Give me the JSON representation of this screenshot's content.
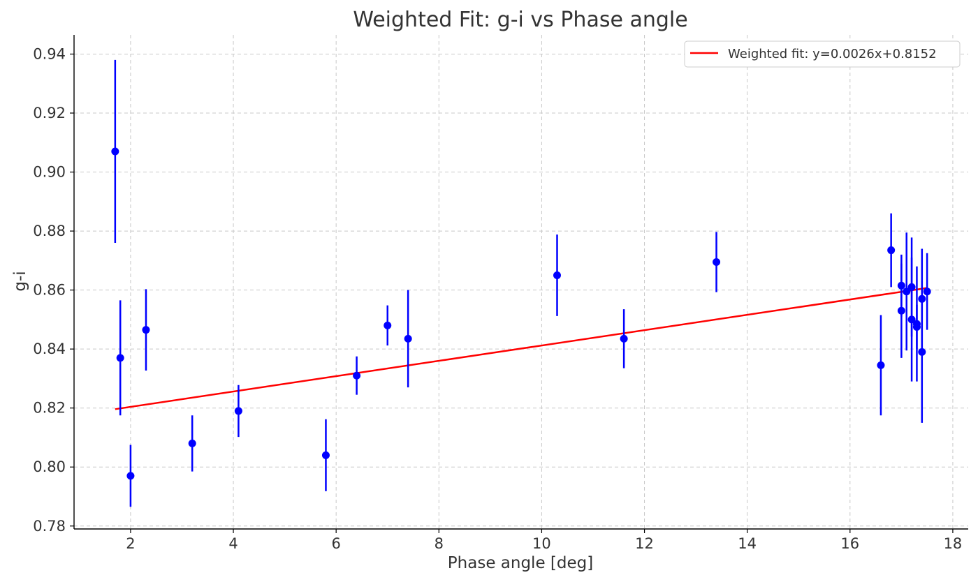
{
  "chart_data": {
    "type": "scatter",
    "title": "Weighted Fit: g-i vs Phase angle",
    "xlabel": "Phase angle [deg]",
    "ylabel": "g-i",
    "xlim": [
      0.9,
      18.3
    ],
    "ylim": [
      0.779,
      0.9465
    ],
    "xticks": [
      2,
      4,
      6,
      8,
      10,
      12,
      14,
      16,
      18
    ],
    "yticks": [
      0.78,
      0.8,
      0.82,
      0.84,
      0.86,
      0.88,
      0.9,
      0.92,
      0.94
    ],
    "xtick_labels": [
      "2",
      "4",
      "6",
      "8",
      "10",
      "12",
      "14",
      "16",
      "18"
    ],
    "ytick_labels": [
      "0.78",
      "0.80",
      "0.82",
      "0.84",
      "0.86",
      "0.88",
      "0.90",
      "0.92",
      "0.94"
    ],
    "grid": true,
    "legend_position": "top-right",
    "colors": {
      "points": "#0000ff",
      "fit": "#ff0000"
    },
    "points": [
      {
        "x": 1.7,
        "y": 0.907,
        "err": 0.031
      },
      {
        "x": 1.8,
        "y": 0.837,
        "err": 0.0195
      },
      {
        "x": 2.0,
        "y": 0.797,
        "err": 0.0105
      },
      {
        "x": 2.3,
        "y": 0.8465,
        "err": 0.0138
      },
      {
        "x": 3.2,
        "y": 0.808,
        "err": 0.0095
      },
      {
        "x": 4.1,
        "y": 0.819,
        "err": 0.0088
      },
      {
        "x": 5.8,
        "y": 0.804,
        "err": 0.0122
      },
      {
        "x": 6.4,
        "y": 0.831,
        "err": 0.0065
      },
      {
        "x": 7.0,
        "y": 0.848,
        "err": 0.0068
      },
      {
        "x": 7.4,
        "y": 0.8435,
        "err": 0.0165
      },
      {
        "x": 10.3,
        "y": 0.865,
        "err": 0.0138
      },
      {
        "x": 11.6,
        "y": 0.8435,
        "err": 0.01
      },
      {
        "x": 13.4,
        "y": 0.8695,
        "err": 0.0102
      },
      {
        "x": 16.6,
        "y": 0.8345,
        "err": 0.017
      },
      {
        "x": 16.8,
        "y": 0.8735,
        "err": 0.0125
      },
      {
        "x": 17.0,
        "y": 0.8615,
        "err": 0.0105
      },
      {
        "x": 17.0,
        "y": 0.853,
        "err": 0.016
      },
      {
        "x": 17.1,
        "y": 0.8595,
        "err": 0.02
      },
      {
        "x": 17.2,
        "y": 0.861,
        "err": 0.0168
      },
      {
        "x": 17.2,
        "y": 0.85,
        "err": 0.021
      },
      {
        "x": 17.3,
        "y": 0.8485,
        "err": 0.0195
      },
      {
        "x": 17.3,
        "y": 0.8475,
        "err": 0.0075
      },
      {
        "x": 17.4,
        "y": 0.857,
        "err": 0.017
      },
      {
        "x": 17.4,
        "y": 0.839,
        "err": 0.024
      },
      {
        "x": 17.5,
        "y": 0.8595,
        "err": 0.013
      }
    ],
    "series": [
      {
        "name": "Weighted fit: y=0.0026x+0.8152",
        "slope": 0.0026,
        "intercept": 0.8152,
        "x_range": [
          1.7,
          17.5
        ]
      }
    ]
  }
}
